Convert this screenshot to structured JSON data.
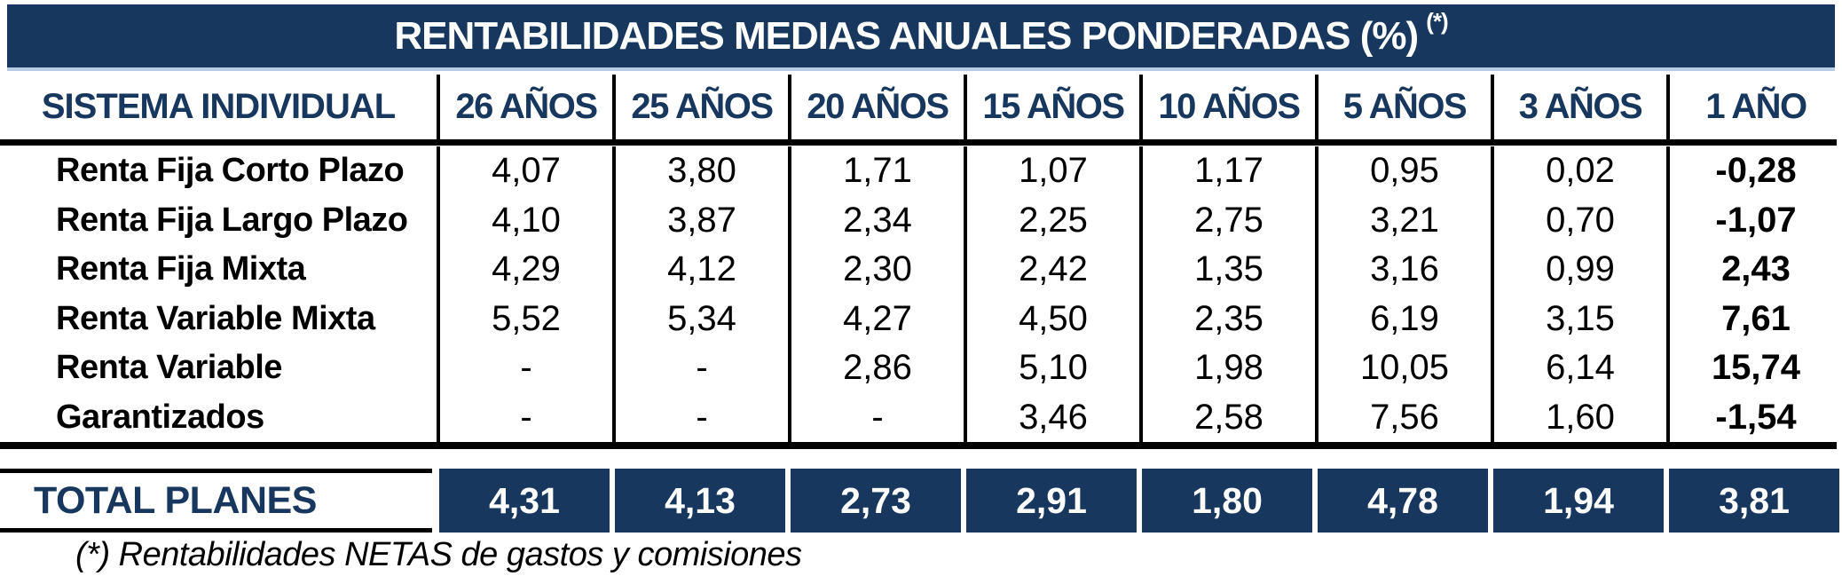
{
  "colors": {
    "navy": "#17375E",
    "title_bar_bottom_edge": "#B8CCE4",
    "title_text": "#FFFFFF",
    "column_header_text": "#17375E",
    "body_text": "#000000",
    "total_box_background": "#17375E",
    "total_box_text": "#FFFFFF"
  },
  "chart_data": {
    "type": "table",
    "title": "RENTABILIDADES MEDIAS ANUALES PONDERADAS (%)",
    "title_superscript": "(*)",
    "row_header": "SISTEMA INDIVIDUAL",
    "period_columns": [
      "26 AÑOS",
      "25 AÑOS",
      "20 AÑOS",
      "15 AÑOS",
      "10 AÑOS",
      "5 AÑOS",
      "3 AÑOS",
      "1 AÑO"
    ],
    "rows": [
      {
        "label": "Renta Fija Corto Plazo",
        "values": [
          "4,07",
          "3,80",
          "1,71",
          "1,07",
          "1,17",
          "0,95",
          "0,02",
          "-0,28"
        ]
      },
      {
        "label": "Renta Fija Largo Plazo",
        "values": [
          "4,10",
          "3,87",
          "2,34",
          "2,25",
          "2,75",
          "3,21",
          "0,70",
          "-1,07"
        ]
      },
      {
        "label": "Renta Fija Mixta",
        "values": [
          "4,29",
          "4,12",
          "2,30",
          "2,42",
          "1,35",
          "3,16",
          "0,99",
          "2,43"
        ]
      },
      {
        "label": "Renta Variable Mixta",
        "values": [
          "5,52",
          "5,34",
          "4,27",
          "4,50",
          "2,35",
          "6,19",
          "3,15",
          "7,61"
        ]
      },
      {
        "label": "Renta Variable",
        "values": [
          "-",
          "-",
          "2,86",
          "5,10",
          "1,98",
          "10,05",
          "6,14",
          "15,74"
        ]
      },
      {
        "label": "Garantizados",
        "values": [
          "-",
          "-",
          "-",
          "3,46",
          "2,58",
          "7,56",
          "1,60",
          "-1,54"
        ]
      }
    ],
    "total": {
      "label": "TOTAL PLANES",
      "values": [
        "4,31",
        "4,13",
        "2,73",
        "2,91",
        "1,80",
        "4,78",
        "1,94",
        "3,81"
      ]
    },
    "footnote": "(*) Rentabilidades NETAS de gastos y comisiones"
  }
}
